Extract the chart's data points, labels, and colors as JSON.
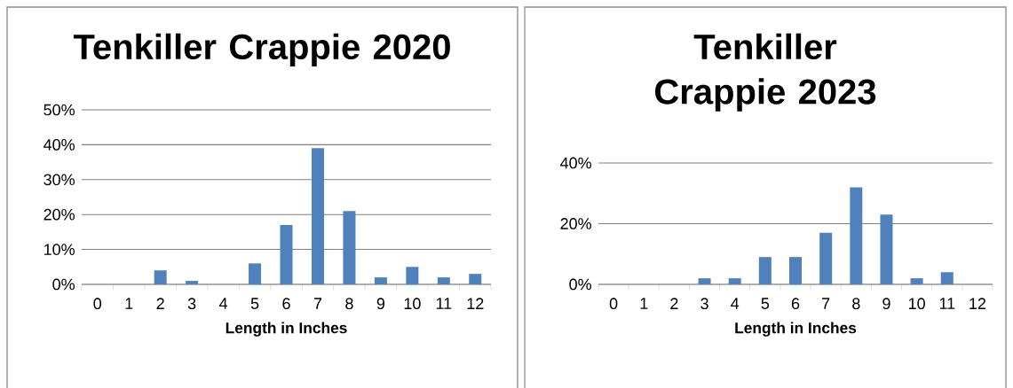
{
  "chart_data": [
    {
      "type": "bar",
      "title": "Tenkiller Crappie 2020",
      "xlabel": "Length in Inches",
      "categories": [
        "0",
        "1",
        "2",
        "3",
        "4",
        "5",
        "6",
        "7",
        "8",
        "9",
        "10",
        "11",
        "12"
      ],
      "values": [
        0,
        0,
        4,
        1,
        0,
        6,
        17,
        39,
        21,
        2,
        5,
        2,
        3
      ],
      "color": "#4f81bd",
      "ylim": [
        0,
        50
      ],
      "yticks": [
        {
          "value": 0,
          "label": "0%"
        },
        {
          "value": 10,
          "label": "10%"
        },
        {
          "value": 20,
          "label": "20%"
        },
        {
          "value": 30,
          "label": "30%"
        },
        {
          "value": 40,
          "label": "40%"
        },
        {
          "value": 50,
          "label": "50%"
        }
      ],
      "grid": "y"
    },
    {
      "type": "bar",
      "title": "Tenkiller Crappie 2023",
      "xlabel": "Length in Inches",
      "categories": [
        "0",
        "1",
        "2",
        "3",
        "4",
        "5",
        "6",
        "7",
        "8",
        "9",
        "10",
        "11",
        "12"
      ],
      "values": [
        0,
        0,
        0,
        2,
        2,
        9,
        9,
        17,
        32,
        23,
        2,
        4,
        0
      ],
      "color": "#4f81bd",
      "ylim": [
        0,
        40
      ],
      "yticks": [
        {
          "value": 0,
          "label": "0%"
        },
        {
          "value": 20,
          "label": "20%"
        },
        {
          "value": 40,
          "label": "40%"
        }
      ],
      "grid": "y"
    }
  ]
}
